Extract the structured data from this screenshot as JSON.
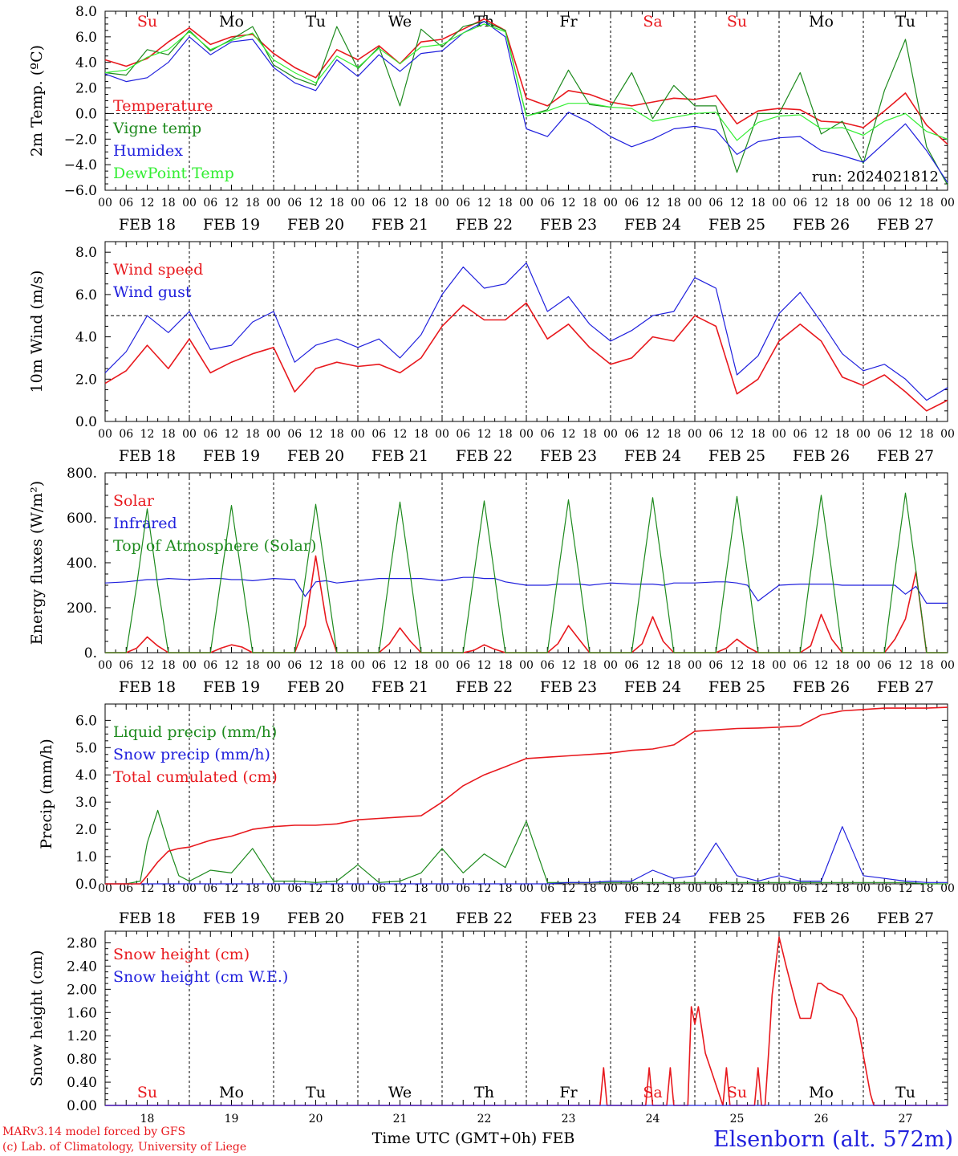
{
  "colors": {
    "red": "#e8191e",
    "green": "#1d8a1d",
    "blue": "#2020dd",
    "lightgreen": "#33ee33",
    "black": "#000000"
  },
  "hour_ticks": [
    "00",
    "06",
    "12",
    "18"
  ],
  "hour_end": "00",
  "dates": [
    "FEB 18",
    "FEB 19",
    "FEB 20",
    "FEB 21",
    "FEB 22",
    "FEB 23",
    "FEB 24",
    "FEB 25",
    "FEB 26",
    "FEB 27"
  ],
  "weekdays": [
    {
      "text": "Su",
      "color": "red"
    },
    {
      "text": "Mo",
      "color": "black"
    },
    {
      "text": "Tu",
      "color": "black"
    },
    {
      "text": "We",
      "color": "black"
    },
    {
      "text": "Th",
      "color": "black"
    },
    {
      "text": "Fr",
      "color": "black"
    },
    {
      "text": "Sa",
      "color": "red"
    },
    {
      "text": "Su",
      "color": "red"
    },
    {
      "text": "Mo",
      "color": "black"
    },
    {
      "text": "Tu",
      "color": "black"
    }
  ],
  "day_numbers": [
    "18",
    "19",
    "20",
    "21",
    "22",
    "23",
    "24",
    "25",
    "26",
    "27"
  ],
  "footer": {
    "credit1": "MARv3.14 model forced by GFS",
    "credit2": "(c) Lab. of Climatology, University of Liege",
    "xlabel": "Time UTC (GMT+0h) FEB",
    "station": "Elsenborn (alt. 572m)"
  },
  "chart_data": [
    {
      "type": "line",
      "ylabel": "2m Temp. (ºC)",
      "ylim": [
        -6,
        8
      ],
      "yticks": [
        "8.0",
        "6.0",
        "4.0",
        "2.0",
        "0.0",
        "−2.0",
        "−4.0",
        "−6.0"
      ],
      "ytick_values": [
        8,
        6,
        4,
        2,
        0,
        -2,
        -4,
        -6
      ],
      "ref_line": 0,
      "annotation": "run: 2024021812",
      "x_hours": [
        0,
        6,
        12,
        18,
        24,
        30,
        36,
        42,
        48,
        54,
        60,
        66,
        72,
        78,
        84,
        90,
        96,
        102,
        108,
        114,
        120,
        126,
        132,
        138,
        144,
        150,
        156,
        162,
        168,
        174,
        180,
        186,
        192,
        198,
        204,
        210,
        216,
        222,
        228,
        234,
        240
      ],
      "series": [
        {
          "name": "Temperature",
          "color": "red",
          "values": [
            4.2,
            3.7,
            4.3,
            5.6,
            6.7,
            5.4,
            6.0,
            6.2,
            4.7,
            3.6,
            2.8,
            5.0,
            4.2,
            5.3,
            3.9,
            5.6,
            5.8,
            6.6,
            7.4,
            6.5,
            1.2,
            0.6,
            1.8,
            1.5,
            0.9,
            0.6,
            0.9,
            1.2,
            1.1,
            1.4,
            -0.8,
            0.2,
            0.4,
            0.3,
            -0.6,
            -0.7,
            -1.1,
            0.2,
            1.6,
            -0.9,
            -2.4
          ]
        },
        {
          "name": "Vigne temp",
          "color": "green",
          "values": [
            3.2,
            3.0,
            5.0,
            4.6,
            6.5,
            4.9,
            5.8,
            6.8,
            3.8,
            2.8,
            2.2,
            6.8,
            3.5,
            5.2,
            0.6,
            6.6,
            5.2,
            6.8,
            7.2,
            6.5,
            -0.2,
            0.3,
            3.4,
            0.7,
            0.5,
            3.2,
            -0.4,
            2.2,
            0.6,
            0.6,
            -4.6,
            0.0,
            0.0,
            3.2,
            -1.6,
            -0.6,
            -3.9,
            1.8,
            5.8,
            -2.6,
            -5.6
          ]
        },
        {
          "name": "Humidex",
          "color": "blue",
          "values": [
            3.1,
            2.5,
            2.8,
            4.0,
            6.0,
            4.6,
            5.6,
            5.8,
            3.6,
            2.4,
            1.8,
            4.2,
            2.9,
            4.6,
            3.3,
            4.7,
            4.9,
            6.3,
            7.2,
            6.0,
            -1.2,
            -1.8,
            0.1,
            -0.7,
            -1.8,
            -2.6,
            -2.0,
            -1.2,
            -1.0,
            -1.3,
            -3.2,
            -2.2,
            -1.9,
            -1.8,
            -2.9,
            -3.3,
            -3.8,
            -2.3,
            -0.8,
            -2.9,
            -5.4
          ]
        },
        {
          "name": "DewPoint Temp",
          "color": "lightgreen",
          "values": [
            3.2,
            3.4,
            4.4,
            5.0,
            6.4,
            5.0,
            5.7,
            6.3,
            4.2,
            3.2,
            2.4,
            4.5,
            3.6,
            5.1,
            3.9,
            5.2,
            5.4,
            6.3,
            7.0,
            6.4,
            -0.2,
            0.2,
            0.8,
            0.8,
            0.5,
            0.4,
            -0.6,
            -0.3,
            0.0,
            0.1,
            -2.1,
            -0.7,
            -0.2,
            -0.1,
            -1.2,
            -1.1,
            -1.7,
            -0.6,
            0.0,
            -1.4,
            -2.0
          ]
        }
      ]
    },
    {
      "type": "line",
      "ylabel": "10m Wind (m/s)",
      "ylim": [
        0,
        8.5
      ],
      "yticks": [
        "8.0",
        "6.0",
        "4.0",
        "2.0",
        "0.0"
      ],
      "ytick_values": [
        8,
        6,
        4,
        2,
        0
      ],
      "ref_line": 5,
      "x_hours": [
        0,
        6,
        12,
        18,
        24,
        30,
        36,
        42,
        48,
        54,
        60,
        66,
        72,
        78,
        84,
        90,
        96,
        102,
        108,
        114,
        120,
        126,
        132,
        138,
        144,
        150,
        156,
        162,
        168,
        174,
        180,
        186,
        192,
        198,
        204,
        210,
        216,
        222,
        228,
        234,
        240
      ],
      "series": [
        {
          "name": "Wind speed",
          "color": "red",
          "values": [
            1.8,
            2.4,
            3.6,
            2.5,
            3.9,
            2.3,
            2.8,
            3.2,
            3.5,
            1.4,
            2.5,
            2.8,
            2.6,
            2.7,
            2.3,
            3.0,
            4.5,
            5.5,
            4.8,
            4.8,
            5.6,
            3.9,
            4.6,
            3.5,
            2.7,
            3.0,
            4.0,
            3.8,
            5.0,
            4.5,
            1.3,
            2.0,
            3.8,
            4.6,
            3.8,
            2.1,
            1.7,
            2.2,
            1.4,
            0.5,
            1.0
          ]
        },
        {
          "name": "Wind gust",
          "color": "blue",
          "values": [
            2.3,
            3.3,
            5.0,
            4.2,
            5.2,
            3.4,
            3.6,
            4.7,
            5.2,
            2.8,
            3.6,
            3.9,
            3.5,
            3.9,
            3.0,
            4.1,
            6.0,
            7.3,
            6.3,
            6.5,
            7.5,
            5.2,
            5.9,
            4.6,
            3.8,
            4.3,
            5.0,
            5.2,
            6.8,
            6.3,
            2.2,
            3.1,
            5.1,
            6.1,
            4.7,
            3.2,
            2.4,
            2.7,
            2.0,
            1.0,
            1.6
          ]
        }
      ]
    },
    {
      "type": "line",
      "ylabel": "Energy fluxes (W/m²)",
      "ylim": [
        0,
        800
      ],
      "yticks": [
        "800.",
        "600.",
        "400.",
        "200.",
        "0."
      ],
      "ytick_values": [
        800,
        600,
        400,
        200,
        0
      ],
      "x_hours": [
        0,
        6,
        9,
        12,
        15,
        18,
        24,
        30,
        33,
        36,
        39,
        42,
        48,
        54,
        57,
        60,
        63,
        66,
        72,
        78,
        81,
        84,
        87,
        90,
        96,
        102,
        105,
        108,
        111,
        114,
        120,
        126,
        129,
        132,
        135,
        138,
        144,
        150,
        153,
        156,
        159,
        162,
        168,
        174,
        177,
        180,
        183,
        186,
        192,
        198,
        201,
        204,
        207,
        210,
        216,
        222,
        225,
        228,
        231,
        234,
        240
      ],
      "series": [
        {
          "name": "Solar",
          "color": "red",
          "values": [
            0,
            0,
            20,
            70,
            30,
            0,
            0,
            0,
            20,
            35,
            25,
            0,
            0,
            0,
            120,
            430,
            140,
            0,
            0,
            0,
            40,
            110,
            50,
            0,
            0,
            0,
            10,
            35,
            15,
            0,
            0,
            0,
            40,
            120,
            60,
            0,
            0,
            0,
            40,
            160,
            50,
            0,
            0,
            0,
            20,
            60,
            25,
            0,
            0,
            0,
            30,
            170,
            60,
            0,
            0,
            0,
            60,
            150,
            360,
            0,
            0
          ]
        },
        {
          "name": "Infrared",
          "color": "blue",
          "values": [
            310,
            315,
            320,
            325,
            325,
            330,
            325,
            330,
            330,
            325,
            325,
            320,
            330,
            325,
            250,
            315,
            320,
            310,
            320,
            330,
            330,
            330,
            330,
            330,
            320,
            335,
            335,
            330,
            330,
            315,
            300,
            300,
            305,
            305,
            305,
            300,
            310,
            305,
            305,
            305,
            300,
            310,
            310,
            315,
            315,
            310,
            300,
            230,
            300,
            305,
            305,
            305,
            305,
            300,
            300,
            300,
            300,
            260,
            295,
            220,
            220
          ]
        },
        {
          "name": "Top of Atmosphere (Solar)",
          "color": "green",
          "values": [
            0,
            0,
            300,
            640,
            300,
            0,
            0,
            0,
            330,
            655,
            330,
            0,
            0,
            0,
            330,
            660,
            330,
            0,
            0,
            0,
            340,
            670,
            340,
            0,
            0,
            0,
            340,
            675,
            340,
            0,
            0,
            0,
            345,
            680,
            345,
            0,
            0,
            0,
            350,
            690,
            350,
            0,
            0,
            0,
            355,
            695,
            355,
            0,
            0,
            0,
            360,
            700,
            360,
            0,
            0,
            0,
            365,
            710,
            365,
            0,
            0
          ]
        }
      ]
    },
    {
      "type": "line",
      "ylabel": "Precip (mm/h)",
      "ylim": [
        0,
        6.6
      ],
      "yticks": [
        "6.0",
        "5.0",
        "4.0",
        "3.0",
        "2.0",
        "1.0",
        "0.0"
      ],
      "ytick_values": [
        6,
        5,
        4,
        3,
        2,
        1,
        0
      ],
      "x_hours": [
        0,
        6,
        10,
        12,
        15,
        18,
        21,
        24,
        30,
        36,
        42,
        48,
        54,
        60,
        66,
        72,
        78,
        84,
        90,
        96,
        102,
        108,
        114,
        120,
        126,
        132,
        138,
        144,
        150,
        156,
        162,
        168,
        174,
        180,
        186,
        192,
        198,
        204,
        210,
        216,
        222,
        228,
        234,
        240
      ],
      "series": [
        {
          "name": "Liquid precip (mm/h)",
          "color": "green",
          "values": [
            0,
            0,
            0.1,
            1.5,
            2.7,
            1.4,
            0.3,
            0.1,
            0.5,
            0.4,
            1.3,
            0.1,
            0.1,
            0.05,
            0.1,
            0.7,
            0.05,
            0.1,
            0.4,
            1.3,
            0.4,
            1.1,
            0.6,
            2.3,
            0.05,
            0.05,
            0.05,
            0.05,
            0.05,
            0.05,
            0.05,
            0.05,
            0.05,
            0.05,
            0.05,
            0.05,
            0.05,
            0.05,
            0.05,
            0.05,
            0.05,
            0.05,
            0.0,
            0.0
          ]
        },
        {
          "name": "Snow precip (mm/h)",
          "color": "blue",
          "values": [
            0,
            0,
            0,
            0,
            0,
            0,
            0,
            0,
            0,
            0,
            0,
            0,
            0,
            0,
            0,
            0,
            0,
            0,
            0,
            0,
            0,
            0,
            0,
            0,
            0,
            0.05,
            0.05,
            0.1,
            0.1,
            0.5,
            0.2,
            0.3,
            1.5,
            0.3,
            0.1,
            0.3,
            0.1,
            0.1,
            2.1,
            0.3,
            0.2,
            0.1,
            0.05,
            0.05
          ]
        },
        {
          "name": "Total cumulated (cm)",
          "color": "red",
          "values": [
            0,
            0,
            0,
            0.3,
            0.8,
            1.2,
            1.3,
            1.35,
            1.6,
            1.75,
            2.0,
            2.1,
            2.15,
            2.15,
            2.2,
            2.35,
            2.4,
            2.45,
            2.5,
            3.0,
            3.6,
            4.0,
            4.3,
            4.6,
            4.65,
            4.7,
            4.75,
            4.8,
            4.9,
            4.95,
            5.1,
            5.6,
            5.65,
            5.7,
            5.72,
            5.75,
            5.8,
            6.2,
            6.35,
            6.4,
            6.45,
            6.45,
            6.45,
            6.48
          ]
        }
      ]
    },
    {
      "type": "line",
      "ylabel": "Snow height (cm)",
      "ylim": [
        0,
        3.0
      ],
      "yticks": [
        "2.80",
        "2.40",
        "2.00",
        "1.60",
        "1.20",
        "0.80",
        "0.40",
        "0.00"
      ],
      "ytick_values": [
        2.8,
        2.4,
        2.0,
        1.6,
        1.2,
        0.8,
        0.4,
        0.0
      ],
      "x_hours": [
        0,
        141,
        142,
        143,
        144,
        154,
        155,
        156,
        160,
        161,
        162,
        166,
        167,
        168,
        169,
        170,
        171,
        176,
        177,
        178,
        180,
        182,
        185,
        186,
        187,
        188,
        189,
        190,
        192,
        194,
        197,
        198,
        201,
        203,
        204,
        206,
        210,
        214,
        215,
        218,
        219,
        240
      ],
      "series": [
        {
          "name": "Snow height (cm)",
          "color": "red",
          "values": [
            0,
            0,
            0.65,
            0,
            0,
            0,
            0.65,
            0,
            0,
            0.65,
            0,
            0,
            1.7,
            1.4,
            1.7,
            1.3,
            0.9,
            0,
            0.65,
            0,
            0,
            0,
            0,
            0.65,
            0,
            0,
            0.9,
            1.9,
            2.9,
            2.4,
            1.7,
            1.5,
            1.5,
            2.1,
            2.1,
            2.0,
            1.9,
            1.5,
            1.2,
            0.2,
            0,
            0
          ]
        },
        {
          "name": "Snow height (cm W.E.)",
          "color": "blue",
          "values": [
            0,
            0,
            0,
            0,
            0,
            0,
            0,
            0,
            0,
            0,
            0,
            0,
            0,
            0,
            0,
            0,
            0,
            0,
            0,
            0,
            0,
            0,
            0,
            0,
            0,
            0,
            0,
            0,
            0,
            0,
            0,
            0,
            0,
            0,
            0,
            0,
            0,
            0,
            0,
            0,
            0,
            0
          ]
        }
      ]
    }
  ]
}
